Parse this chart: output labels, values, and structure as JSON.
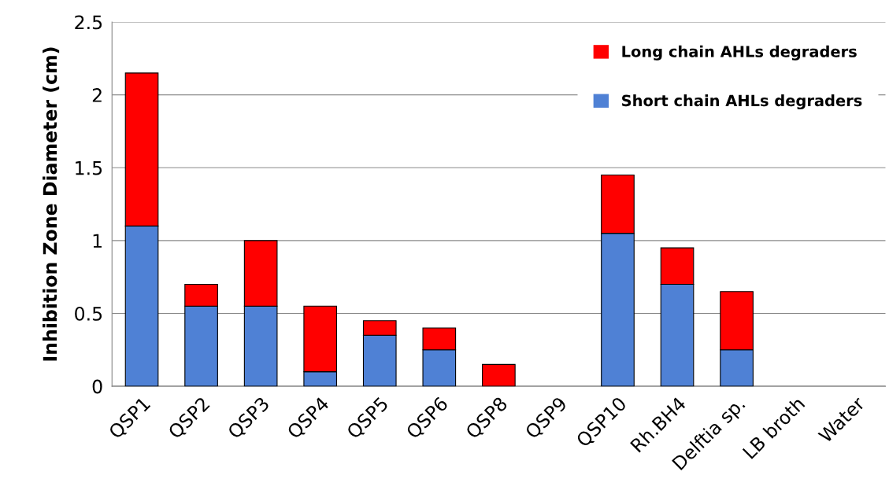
{
  "chart_data": {
    "type": "bar",
    "stacked": true,
    "ylabel": "Inhibition Zone Diameter (cm)",
    "categories": [
      "QSP1",
      "QSP2",
      "QSP3",
      "QSP4",
      "QSP5",
      "QSP6",
      "QSP8",
      "QSP9",
      "QSP10",
      "Rh.BH4",
      "Delftia sp.",
      "LB broth",
      "Water"
    ],
    "series": [
      {
        "name": "Short chain AHLs degraders",
        "color": "#4f81d5",
        "values": [
          1.1,
          0.55,
          0.55,
          0.1,
          0.35,
          0.25,
          0,
          0,
          1.05,
          0.7,
          0.25,
          0,
          0
        ]
      },
      {
        "name": "Long chain AHLs degraders",
        "color": "#ff0000",
        "values": [
          1.05,
          0.15,
          0.45,
          0.45,
          0.1,
          0.15,
          0.15,
          0,
          0.4,
          0.25,
          0.4,
          0,
          0
        ]
      }
    ],
    "ylim": [
      0,
      2.5
    ],
    "yticks": [
      0,
      0.5,
      1,
      1.5,
      2,
      2.5
    ],
    "grid": "y",
    "legend": "top right"
  }
}
